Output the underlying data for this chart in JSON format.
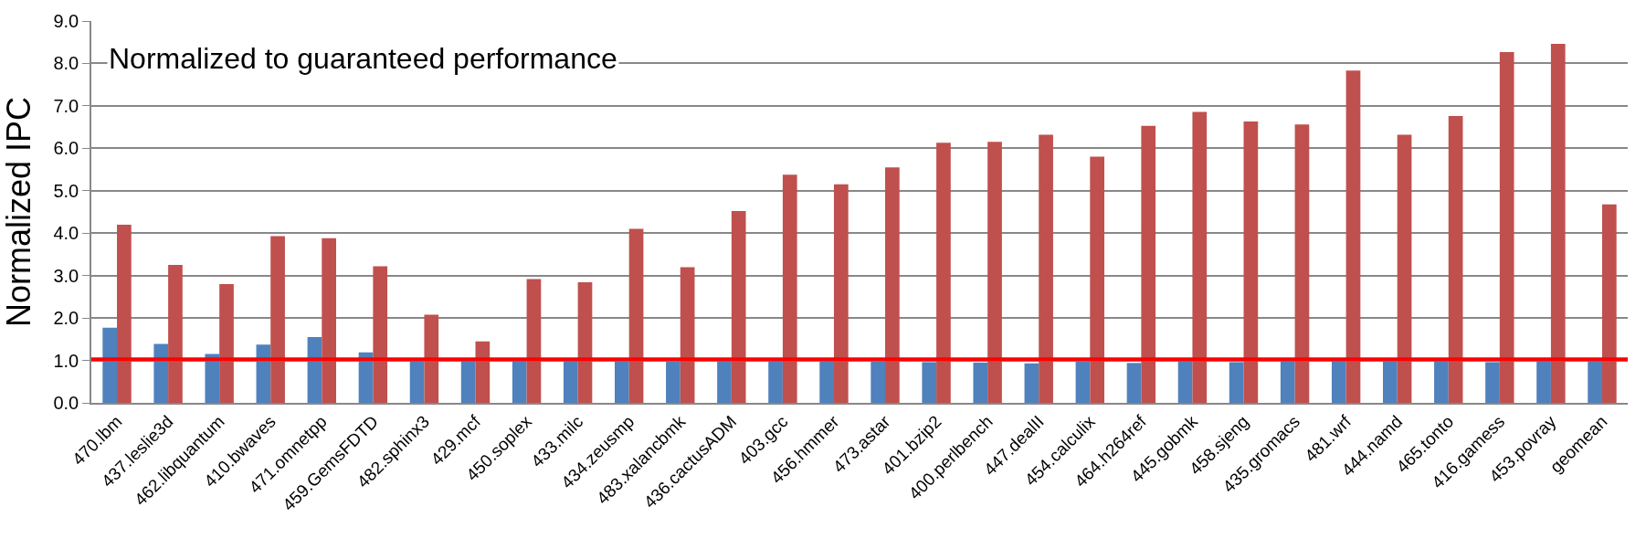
{
  "chart_data": {
    "type": "bar",
    "ylabel": "Normalized IPC",
    "annotations": [
      "Normalized to guaranteed performance"
    ],
    "categories": [
      "470.lbm",
      "437.leslie3d",
      "462.libquantum",
      "410.bwaves",
      "471.omnetpp",
      "459.GemsFDTD",
      "482.sphinx3",
      "429.mcf",
      "450.soplex",
      "433.milc",
      "434.zeusmp",
      "483.xalancbmk",
      "436.cactusADM",
      "403.gcc",
      "456.hmmer",
      "473.astar",
      "401.bzip2",
      "400.perlbench",
      "447.dealII",
      "454.calculix",
      "464.h264ref",
      "445.gobmk",
      "458.sjeng",
      "435.gromacs",
      "481.wrf",
      "444.namd",
      "465.tonto",
      "416.gamess",
      "453.povray",
      "geomean"
    ],
    "series": [
      {
        "color": "#4f81bd",
        "values": [
          1.77,
          1.39,
          1.15,
          1.37,
          1.55,
          1.19,
          1.0,
          1.0,
          1.0,
          1.0,
          0.98,
          0.97,
          0.99,
          0.99,
          1.0,
          0.97,
          0.96,
          0.95,
          0.93,
          0.97,
          0.94,
          0.99,
          0.96,
          1.0,
          1.0,
          0.98,
          1.0,
          0.96,
          1.0,
          1.0
        ]
      },
      {
        "color": "#c0504d",
        "values": [
          4.2,
          3.25,
          2.8,
          3.93,
          3.88,
          3.22,
          2.08,
          1.45,
          2.92,
          2.84,
          4.1,
          3.2,
          4.52,
          5.38,
          5.15,
          5.55,
          6.13,
          6.15,
          6.32,
          5.8,
          6.53,
          6.86,
          6.63,
          6.56,
          7.83,
          6.32,
          6.76,
          8.27,
          8.46,
          4.68
        ]
      }
    ],
    "ylim": [
      0,
      9
    ],
    "yticks": [
      {
        "value": 0,
        "label": "0.0"
      },
      {
        "value": 1,
        "label": "1.0"
      },
      {
        "value": 2,
        "label": "2.0"
      },
      {
        "value": 3,
        "label": "3.0"
      },
      {
        "value": 4,
        "label": "4.0"
      },
      {
        "value": 5,
        "label": "5.0"
      },
      {
        "value": 6,
        "label": "6.0"
      },
      {
        "value": 7,
        "label": "7.0"
      },
      {
        "value": 8,
        "label": "8.0"
      },
      {
        "value": 9,
        "label": "9.0"
      }
    ],
    "ref_lines": [
      {
        "axis": "y",
        "value": 1.03,
        "color": "#ff0000"
      }
    ],
    "grid": "y",
    "legend": false
  }
}
